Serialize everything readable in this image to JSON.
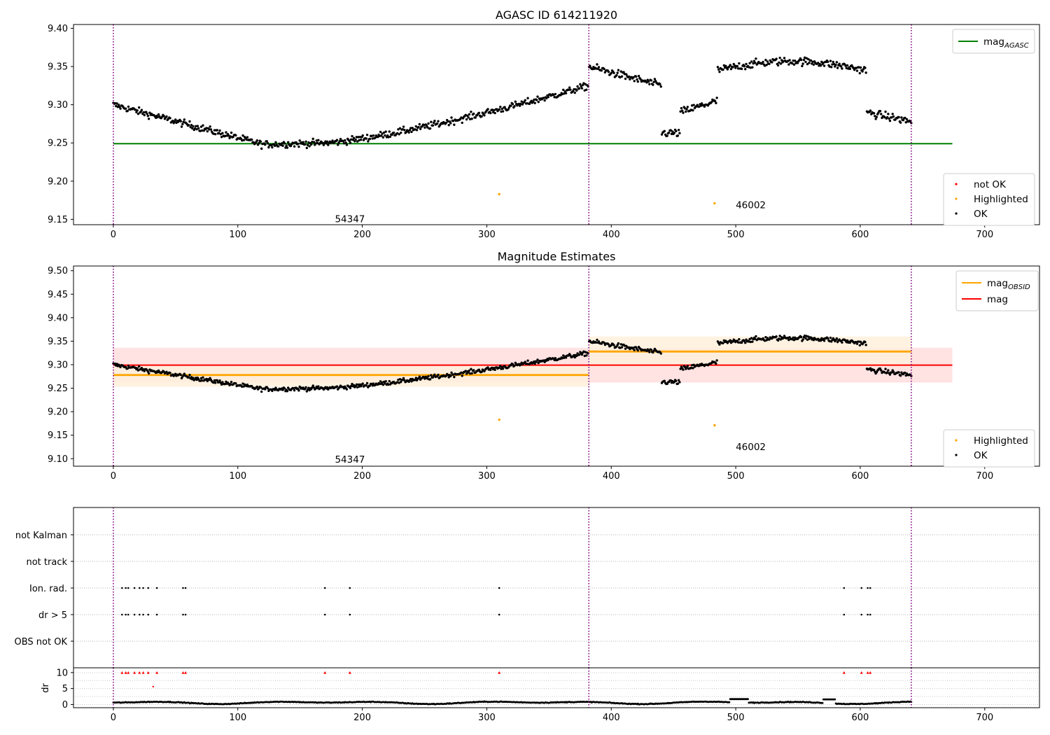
{
  "chart_data": [
    {
      "type": "scatter",
      "title": "AGASC ID 614211920",
      "xlim": [
        -32,
        744
      ],
      "ylim": [
        9.143,
        9.405
      ],
      "x_ticks": [
        0,
        100,
        200,
        300,
        400,
        500,
        600,
        700
      ],
      "y_ticks": [
        9.15,
        9.2,
        9.25,
        9.3,
        9.35,
        9.4
      ],
      "y_tick_labels": [
        "9.15",
        "9.20",
        "9.25",
        "9.30",
        "9.35",
        "9.40"
      ],
      "vlines": [
        0,
        382,
        641
      ],
      "hlines": [
        {
          "name": "mag_AGASC",
          "y": 9.249,
          "x0": 0,
          "x1": 674,
          "color": "#008000"
        }
      ],
      "legend_lines": [
        {
          "main": "mag",
          "sub": "AGASC",
          "color": "#008000"
        }
      ],
      "legend_points": [
        {
          "label": "not OK",
          "color": "#ff0000"
        },
        {
          "label": "Highlighted",
          "color": "#ffa500"
        },
        {
          "label": "OK",
          "color": "#000000"
        }
      ],
      "highlighted_points": [
        [
          310,
          9.183
        ],
        [
          483,
          9.171
        ]
      ],
      "annotations": [
        {
          "text": "54347",
          "x": 178,
          "y": 9.151
        },
        {
          "text": "46002",
          "x": 500,
          "y": 9.169
        }
      ]
    },
    {
      "type": "scatter",
      "title": "Magnitude Estimates",
      "xlim": [
        -32,
        744
      ],
      "ylim": [
        9.084,
        9.51
      ],
      "x_ticks": [
        0,
        100,
        200,
        300,
        400,
        500,
        600,
        700
      ],
      "y_ticks": [
        9.1,
        9.15,
        9.2,
        9.25,
        9.3,
        9.35,
        9.4,
        9.45,
        9.5
      ],
      "y_tick_labels": [
        "9.10",
        "9.15",
        "9.20",
        "9.25",
        "9.30",
        "9.35",
        "9.40",
        "9.45",
        "9.50"
      ],
      "vlines": [
        0,
        382,
        641
      ],
      "bands": [
        {
          "x0": 0,
          "x1": 674,
          "y0": 9.262,
          "y1": 9.336,
          "color": "#ffdddd"
        },
        {
          "x0": 0,
          "x1": 382,
          "y0": 9.253,
          "y1": 9.3,
          "color": "#fff0dc"
        },
        {
          "x0": 382,
          "x1": 641,
          "y0": 9.295,
          "y1": 9.36,
          "color": "#fff0dc"
        }
      ],
      "hlines": [
        {
          "name": "mag",
          "y": 9.299,
          "x0": 0,
          "x1": 674,
          "color": "#ff0000"
        },
        {
          "name": "mag_OBSID",
          "y": 9.278,
          "x0": 0,
          "x1": 382,
          "color": "#ffa500"
        },
        {
          "name": "mag_OBSID",
          "y": 9.328,
          "x0": 382,
          "x1": 641,
          "color": "#ffa500"
        }
      ],
      "legend_lines": [
        {
          "main": "mag",
          "sub": "OBSID",
          "color": "#ffa500"
        },
        {
          "main": "mag",
          "sub": "",
          "color": "#ff0000"
        }
      ],
      "legend_points": [
        {
          "label": "Highlighted",
          "color": "#ffa500"
        },
        {
          "label": "OK",
          "color": "#000000"
        }
      ],
      "highlighted_points": [
        [
          310,
          9.183
        ],
        [
          483,
          9.171
        ]
      ],
      "annotations": [
        {
          "text": "54347",
          "x": 178,
          "y": 9.099
        },
        {
          "text": "46002",
          "x": 500,
          "y": 9.126
        }
      ]
    },
    {
      "type": "scatter",
      "title": "",
      "xlim": [
        -32,
        744
      ],
      "categories": [
        "not Kalman",
        "not track",
        "Ion. rad.",
        "dr > 5",
        "OBS not OK"
      ],
      "flags": {
        "Ion. rad.": [
          7,
          10,
          12,
          17,
          21,
          24,
          28,
          35,
          56,
          58,
          170,
          190,
          310,
          587,
          601,
          606,
          608
        ],
        "dr > 5": [
          7,
          10,
          12,
          17,
          21,
          24,
          28,
          35,
          56,
          58,
          170,
          190,
          310,
          587,
          601,
          606,
          608
        ]
      },
      "vlines": [
        0,
        382,
        641
      ]
    },
    {
      "type": "scatter",
      "title": "",
      "ylabel": "dr",
      "xlim": [
        -32,
        744
      ],
      "ylim": [
        -1,
        11.5
      ],
      "x_ticks": [
        0,
        100,
        200,
        300,
        400,
        500,
        600,
        700
      ],
      "y_ticks": [
        0,
        5,
        10
      ],
      "y_tick_labels": [
        "0",
        "5",
        "10"
      ],
      "capped_points": [
        7,
        10,
        12,
        17,
        21,
        24,
        28,
        35,
        56,
        58,
        170,
        190,
        310,
        587,
        601,
        606,
        608
      ],
      "extra_red_points": [
        [
          32,
          5.6
        ]
      ],
      "vlines": [
        0,
        382,
        641
      ]
    }
  ]
}
